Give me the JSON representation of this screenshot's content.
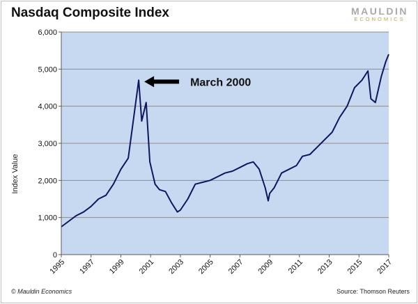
{
  "chart_data": {
    "type": "line",
    "title": "Nasdaq Composite Index",
    "xlabel": "",
    "ylabel": "Index Value",
    "xlim": [
      1995,
      2017
    ],
    "ylim": [
      0,
      6000
    ],
    "yticks": [
      0,
      1000,
      2000,
      3000,
      4000,
      5000,
      6000
    ],
    "ytick_labels": [
      "0",
      "1,000",
      "2,000",
      "3,000",
      "4,000",
      "5,000",
      "6,000"
    ],
    "xticks": [
      1995,
      1997,
      1999,
      2001,
      2003,
      2005,
      2007,
      2009,
      2011,
      2013,
      2015,
      2017
    ],
    "xtick_labels": [
      "1995",
      "1997",
      "1999",
      "2001",
      "2003",
      "2005",
      "2007",
      "2009",
      "2011",
      "2013",
      "2015",
      "2017"
    ],
    "grid": true,
    "plot_background": "#c6d9f1",
    "series": [
      {
        "color": "#10155f",
        "points": [
          [
            1995.0,
            750
          ],
          [
            1995.5,
            900
          ],
          [
            1996.0,
            1050
          ],
          [
            1996.5,
            1150
          ],
          [
            1997.0,
            1300
          ],
          [
            1997.5,
            1500
          ],
          [
            1998.0,
            1600
          ],
          [
            1998.5,
            1900
          ],
          [
            1999.0,
            2300
          ],
          [
            1999.5,
            2600
          ],
          [
            1999.9,
            3800
          ],
          [
            2000.2,
            4700
          ],
          [
            2000.4,
            3600
          ],
          [
            2000.7,
            4100
          ],
          [
            2000.95,
            2500
          ],
          [
            2001.3,
            1900
          ],
          [
            2001.6,
            1750
          ],
          [
            2002.0,
            1700
          ],
          [
            2002.4,
            1400
          ],
          [
            2002.8,
            1150
          ],
          [
            2003.0,
            1200
          ],
          [
            2003.5,
            1500
          ],
          [
            2004.0,
            1900
          ],
          [
            2004.5,
            1950
          ],
          [
            2005.0,
            2000
          ],
          [
            2005.5,
            2100
          ],
          [
            2006.0,
            2200
          ],
          [
            2006.5,
            2250
          ],
          [
            2007.0,
            2350
          ],
          [
            2007.5,
            2450
          ],
          [
            2007.9,
            2500
          ],
          [
            2008.3,
            2300
          ],
          [
            2008.7,
            1800
          ],
          [
            2008.9,
            1450
          ],
          [
            2009.0,
            1650
          ],
          [
            2009.3,
            1800
          ],
          [
            2009.8,
            2200
          ],
          [
            2010.3,
            2300
          ],
          [
            2010.8,
            2400
          ],
          [
            2011.2,
            2650
          ],
          [
            2011.7,
            2700
          ],
          [
            2012.2,
            2900
          ],
          [
            2012.7,
            3100
          ],
          [
            2013.2,
            3300
          ],
          [
            2013.7,
            3700
          ],
          [
            2014.2,
            4000
          ],
          [
            2014.7,
            4500
          ],
          [
            2015.2,
            4700
          ],
          [
            2015.6,
            4950
          ],
          [
            2015.8,
            4200
          ],
          [
            2016.1,
            4100
          ],
          [
            2016.5,
            4800
          ],
          [
            2016.8,
            5200
          ],
          [
            2017.0,
            5400
          ]
        ]
      }
    ],
    "annotations": [
      {
        "text": "March 2000",
        "x": 2000.2,
        "y": 4700,
        "arrow": "left"
      }
    ]
  },
  "header": {
    "brand_line1": "MAULDIN",
    "brand_line2": "ECONOMICS"
  },
  "footer": {
    "copyright": "© Mauldin Economics",
    "source": "Source: Thomson Reuters"
  }
}
